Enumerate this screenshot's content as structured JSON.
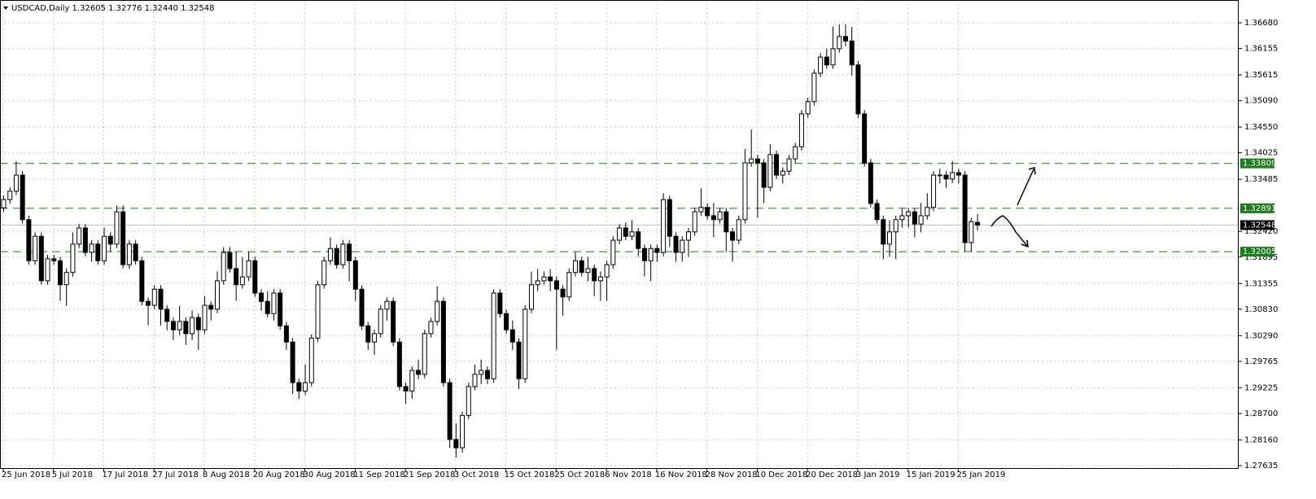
{
  "chart_data": {
    "type": "candlestick",
    "header": "USDCAD,Daily  1.32605 1.32776 1.32440 1.32548",
    "grid": true,
    "ylim": [
      1.27585,
      1.37146
    ],
    "yticks": [
      {
        "value": 1.3668,
        "label": "1.36680"
      },
      {
        "value": 1.36155,
        "label": "1.36155"
      },
      {
        "value": 1.35615,
        "label": "1.35615"
      },
      {
        "value": 1.3509,
        "label": "1.35090"
      },
      {
        "value": 1.3455,
        "label": "1.34550"
      },
      {
        "value": 1.34025,
        "label": "1.34025"
      },
      {
        "value": 1.33485,
        "label": "1.33485"
      },
      {
        "value": 1.3242,
        "label": "1.32420"
      },
      {
        "value": 1.31895,
        "label": "1.31895"
      },
      {
        "value": 1.31355,
        "label": "1.31355"
      },
      {
        "value": 1.3083,
        "label": "1.30830"
      },
      {
        "value": 1.3029,
        "label": "1.30290"
      },
      {
        "value": 1.29765,
        "label": "1.29765"
      },
      {
        "value": 1.29225,
        "label": "1.29225"
      },
      {
        "value": 1.287,
        "label": "1.28700"
      },
      {
        "value": 1.2816,
        "label": "1.28160"
      },
      {
        "value": 1.27635,
        "label": "1.27635"
      }
    ],
    "levels": [
      1.33809,
      1.32891,
      1.32005
    ],
    "level_color": "#1e7b1e",
    "current_price": 1.32548,
    "up_color": "#ffffff",
    "down_color": "#000000",
    "categories": [
      "25 Jun 2018",
      null,
      null,
      null,
      null,
      null,
      null,
      null,
      "5 Jul 2018",
      null,
      null,
      null,
      null,
      null,
      null,
      null,
      "17 Jul 2018",
      null,
      null,
      null,
      null,
      null,
      null,
      null,
      "27 Jul 2018",
      null,
      null,
      null,
      null,
      null,
      null,
      null,
      "8 Aug 2018",
      null,
      null,
      null,
      null,
      null,
      null,
      null,
      "20 Aug 2018",
      null,
      null,
      null,
      null,
      null,
      null,
      null,
      "30 Aug 2018",
      null,
      null,
      null,
      null,
      null,
      null,
      null,
      "11 Sep 2018",
      null,
      null,
      null,
      null,
      null,
      null,
      null,
      "21 Sep 2018",
      null,
      null,
      null,
      null,
      null,
      null,
      null,
      "3 Oct 2018",
      null,
      null,
      null,
      null,
      null,
      null,
      null,
      "15 Oct 2018",
      null,
      null,
      null,
      null,
      null,
      null,
      null,
      "25 Oct 2018",
      null,
      null,
      null,
      null,
      null,
      null,
      null,
      "6 Nov 2018",
      null,
      null,
      null,
      null,
      null,
      null,
      null,
      "16 Nov 2018",
      null,
      null,
      null,
      null,
      null,
      null,
      null,
      "28 Nov 2018",
      null,
      null,
      null,
      null,
      null,
      null,
      null,
      "10 Dec 2018",
      null,
      null,
      null,
      null,
      null,
      null,
      null,
      "20 Dec 2018",
      null,
      null,
      null,
      null,
      null,
      null,
      null,
      "3 Jan 2019",
      null,
      null,
      null,
      null,
      null,
      null,
      null,
      "15 Jan 2019",
      null,
      null,
      null,
      null,
      null,
      null,
      null,
      "25 Jan 2019",
      null,
      null,
      null
    ],
    "candles": [
      [
        1.329,
        1.3315,
        1.3282,
        1.3307
      ],
      [
        1.3307,
        1.3332,
        1.3299,
        1.3324
      ],
      [
        1.3324,
        1.3385,
        1.3316,
        1.3357
      ],
      [
        1.3357,
        1.3365,
        1.3258,
        1.3266
      ],
      [
        1.3266,
        1.3274,
        1.3174,
        1.3182
      ],
      [
        1.3182,
        1.324,
        1.3174,
        1.3232
      ],
      [
        1.3232,
        1.324,
        1.3133,
        1.3141
      ],
      [
        1.3141,
        1.3194,
        1.3133,
        1.3186
      ],
      [
        1.3186,
        1.3194,
        1.3174,
        1.3182
      ],
      [
        1.3182,
        1.319,
        1.31,
        1.3133
      ],
      [
        1.3133,
        1.3166,
        1.309,
        1.3158
      ],
      [
        1.3158,
        1.324,
        1.315,
        1.3216
      ],
      [
        1.3216,
        1.3257,
        1.3208,
        1.3249
      ],
      [
        1.3249,
        1.3257,
        1.3191,
        1.3199
      ],
      [
        1.3199,
        1.3224,
        1.318,
        1.3216
      ],
      [
        1.3216,
        1.3224,
        1.3174,
        1.3182
      ],
      [
        1.3182,
        1.325,
        1.3174,
        1.3232
      ],
      [
        1.3232,
        1.324,
        1.32,
        1.3216
      ],
      [
        1.3216,
        1.3295,
        1.3208,
        1.3282
      ],
      [
        1.3282,
        1.3295,
        1.3166,
        1.3174
      ],
      [
        1.3174,
        1.3224,
        1.3166,
        1.3216
      ],
      [
        1.3216,
        1.3224,
        1.3174,
        1.3182
      ],
      [
        1.3182,
        1.319,
        1.3091,
        1.3099
      ],
      [
        1.3099,
        1.3107,
        1.305,
        1.3091
      ],
      [
        1.3091,
        1.3132,
        1.3083,
        1.3124
      ],
      [
        1.3124,
        1.3132,
        1.305,
        1.3083
      ],
      [
        1.3083,
        1.3091,
        1.304,
        1.3058
      ],
      [
        1.3058,
        1.3066,
        1.302,
        1.3041
      ],
      [
        1.3041,
        1.309,
        1.303,
        1.3058
      ],
      [
        1.3058,
        1.3066,
        1.301,
        1.3033
      ],
      [
        1.3033,
        1.308,
        1.302,
        1.3066
      ],
      [
        1.3066,
        1.3074,
        1.3,
        1.3041
      ],
      [
        1.3041,
        1.311,
        1.3033,
        1.3091
      ],
      [
        1.3091,
        1.3099,
        1.306,
        1.3083
      ],
      [
        1.3083,
        1.316,
        1.3075,
        1.3141
      ],
      [
        1.3141,
        1.321,
        1.3133,
        1.3199
      ],
      [
        1.3199,
        1.321,
        1.3158,
        1.3166
      ],
      [
        1.3166,
        1.32,
        1.31,
        1.3133
      ],
      [
        1.3133,
        1.319,
        1.3125,
        1.3149
      ],
      [
        1.3149,
        1.32,
        1.3141,
        1.3182
      ],
      [
        1.3182,
        1.319,
        1.3108,
        1.3116
      ],
      [
        1.3116,
        1.3124,
        1.308,
        1.3099
      ],
      [
        1.3099,
        1.312,
        1.3066,
        1.3074
      ],
      [
        1.3074,
        1.3124,
        1.306,
        1.3116
      ],
      [
        1.3116,
        1.3124,
        1.3041,
        1.3049
      ],
      [
        1.3049,
        1.3057,
        1.3,
        1.3016
      ],
      [
        1.3016,
        1.3024,
        1.291,
        1.2933
      ],
      [
        1.2933,
        1.2941,
        1.29,
        1.2916
      ],
      [
        1.2916,
        1.297,
        1.2908,
        1.2933
      ],
      [
        1.2933,
        1.3032,
        1.2925,
        1.3024
      ],
      [
        1.3024,
        1.3141,
        1.3016,
        1.3133
      ],
      [
        1.3133,
        1.319,
        1.3125,
        1.3182
      ],
      [
        1.3182,
        1.323,
        1.3174,
        1.3207
      ],
      [
        1.3207,
        1.3215,
        1.3166,
        1.3174
      ],
      [
        1.3174,
        1.3224,
        1.3166,
        1.3216
      ],
      [
        1.3216,
        1.3224,
        1.314,
        1.3182
      ],
      [
        1.3182,
        1.319,
        1.31,
        1.3124
      ],
      [
        1.3124,
        1.3132,
        1.3041,
        1.3049
      ],
      [
        1.3049,
        1.3057,
        1.3,
        1.3016
      ],
      [
        1.3016,
        1.3041,
        1.299,
        1.3033
      ],
      [
        1.3033,
        1.3091,
        1.3025,
        1.3083
      ],
      [
        1.3083,
        1.3107,
        1.306,
        1.3099
      ],
      [
        1.3099,
        1.3107,
        1.3008,
        1.3016
      ],
      [
        1.3016,
        1.3024,
        1.2917,
        1.2925
      ],
      [
        1.2925,
        1.2933,
        1.289,
        1.2916
      ],
      [
        1.2916,
        1.2966,
        1.29,
        1.2958
      ],
      [
        1.2958,
        1.298,
        1.294,
        1.295
      ],
      [
        1.295,
        1.3041,
        1.2942,
        1.3033
      ],
      [
        1.3033,
        1.3066,
        1.3025,
        1.3058
      ],
      [
        1.3058,
        1.313,
        1.305,
        1.3099
      ],
      [
        1.3099,
        1.3107,
        1.2925,
        1.2933
      ],
      [
        1.2933,
        1.2941,
        1.28,
        1.2817
      ],
      [
        1.2817,
        1.285,
        1.278,
        1.28
      ],
      [
        1.28,
        1.2874,
        1.279,
        1.2866
      ],
      [
        1.2866,
        1.2933,
        1.2858,
        1.2925
      ],
      [
        1.2925,
        1.297,
        1.2917,
        1.295
      ],
      [
        1.295,
        1.298,
        1.293,
        1.2958
      ],
      [
        1.2958,
        1.2966,
        1.293,
        1.2941
      ],
      [
        1.2941,
        1.3124,
        1.2933,
        1.3116
      ],
      [
        1.3116,
        1.3124,
        1.3066,
        1.3074
      ],
      [
        1.3074,
        1.3082,
        1.3033,
        1.3041
      ],
      [
        1.3041,
        1.306,
        1.3,
        1.3016
      ],
      [
        1.3016,
        1.3024,
        1.292,
        1.2941
      ],
      [
        1.2941,
        1.3091,
        1.2933,
        1.3083
      ],
      [
        1.3083,
        1.316,
        1.3075,
        1.3133
      ],
      [
        1.3133,
        1.3165,
        1.312,
        1.3141
      ],
      [
        1.3141,
        1.316,
        1.3133,
        1.3149
      ],
      [
        1.3149,
        1.3165,
        1.312,
        1.3141
      ],
      [
        1.3141,
        1.315,
        1.3,
        1.3124
      ],
      [
        1.3124,
        1.3132,
        1.307,
        1.3108
      ],
      [
        1.3108,
        1.3166,
        1.31,
        1.3158
      ],
      [
        1.3158,
        1.32,
        1.315,
        1.3182
      ],
      [
        1.3182,
        1.319,
        1.315,
        1.3158
      ],
      [
        1.3158,
        1.319,
        1.314,
        1.3166
      ],
      [
        1.3166,
        1.3174,
        1.311,
        1.3141
      ],
      [
        1.3141,
        1.316,
        1.31,
        1.3149
      ],
      [
        1.3149,
        1.3182,
        1.31,
        1.3174
      ],
      [
        1.3174,
        1.3232,
        1.3166,
        1.3224
      ],
      [
        1.3224,
        1.3257,
        1.3216,
        1.3249
      ],
      [
        1.3249,
        1.326,
        1.3224,
        1.3232
      ],
      [
        1.3232,
        1.3265,
        1.3224,
        1.3241
      ],
      [
        1.3241,
        1.3249,
        1.319,
        1.3207
      ],
      [
        1.3207,
        1.3215,
        1.315,
        1.3182
      ],
      [
        1.3182,
        1.3215,
        1.314,
        1.3207
      ],
      [
        1.3207,
        1.3215,
        1.318,
        1.3199
      ],
      [
        1.3199,
        1.332,
        1.3191,
        1.3307
      ],
      [
        1.3307,
        1.3315,
        1.321,
        1.3232
      ],
      [
        1.3232,
        1.324,
        1.318,
        1.3199
      ],
      [
        1.3199,
        1.3232,
        1.318,
        1.3224
      ],
      [
        1.3224,
        1.3249,
        1.319,
        1.3241
      ],
      [
        1.3241,
        1.329,
        1.3233,
        1.3282
      ],
      [
        1.3282,
        1.333,
        1.3274,
        1.3291
      ],
      [
        1.3291,
        1.3299,
        1.3266,
        1.3274
      ],
      [
        1.3274,
        1.33,
        1.323,
        1.3266
      ],
      [
        1.3266,
        1.329,
        1.3258,
        1.3282
      ],
      [
        1.3282,
        1.329,
        1.32,
        1.3241
      ],
      [
        1.3241,
        1.3249,
        1.318,
        1.3224
      ],
      [
        1.3224,
        1.3274,
        1.3216,
        1.3266
      ],
      [
        1.3266,
        1.341,
        1.3258,
        1.3382
      ],
      [
        1.3382,
        1.345,
        1.3374,
        1.339
      ],
      [
        1.339,
        1.3398,
        1.327,
        1.3382
      ],
      [
        1.3382,
        1.339,
        1.33,
        1.3332
      ],
      [
        1.3332,
        1.342,
        1.3324,
        1.3399
      ],
      [
        1.3399,
        1.3407,
        1.3349,
        1.3357
      ],
      [
        1.3357,
        1.3373,
        1.334,
        1.3365
      ],
      [
        1.3365,
        1.3398,
        1.3357,
        1.339
      ],
      [
        1.339,
        1.3423,
        1.3382,
        1.3415
      ],
      [
        1.3415,
        1.349,
        1.3407,
        1.3482
      ],
      [
        1.3482,
        1.3515,
        1.3474,
        1.3507
      ],
      [
        1.3507,
        1.3573,
        1.3499,
        1.3565
      ],
      [
        1.3565,
        1.3606,
        1.3557,
        1.3598
      ],
      [
        1.3598,
        1.3615,
        1.3574,
        1.3582
      ],
      [
        1.3582,
        1.366,
        1.3574,
        1.3615
      ],
      [
        1.3615,
        1.3665,
        1.3607,
        1.364
      ],
      [
        1.364,
        1.3665,
        1.362,
        1.3631
      ],
      [
        1.3631,
        1.366,
        1.356,
        1.3582
      ],
      [
        1.3582,
        1.359,
        1.3474,
        1.3482
      ],
      [
        1.3482,
        1.349,
        1.3374,
        1.3382
      ],
      [
        1.3382,
        1.339,
        1.3291,
        1.3299
      ],
      [
        1.3299,
        1.3307,
        1.3258,
        1.3266
      ],
      [
        1.3266,
        1.3274,
        1.3185,
        1.3216
      ],
      [
        1.3216,
        1.3265,
        1.319,
        1.3241
      ],
      [
        1.3241,
        1.3274,
        1.3185,
        1.3266
      ],
      [
        1.3266,
        1.329,
        1.325,
        1.3274
      ],
      [
        1.3274,
        1.329,
        1.325,
        1.3282
      ],
      [
        1.3282,
        1.329,
        1.323,
        1.3257
      ],
      [
        1.3257,
        1.33,
        1.324,
        1.3274
      ],
      [
        1.3274,
        1.332,
        1.3266,
        1.3291
      ],
      [
        1.3291,
        1.3365,
        1.3283,
        1.3357
      ],
      [
        1.3357,
        1.337,
        1.334,
        1.3357
      ],
      [
        1.3357,
        1.3365,
        1.333,
        1.3349
      ],
      [
        1.3349,
        1.3385,
        1.3341,
        1.3362
      ],
      [
        1.3362,
        1.337,
        1.334,
        1.3357
      ],
      [
        1.3357,
        1.3365,
        1.32,
        1.3219
      ],
      [
        1.3219,
        1.327,
        1.32,
        1.3262
      ],
      [
        1.32605,
        1.32776,
        1.3244,
        1.32548
      ]
    ]
  }
}
